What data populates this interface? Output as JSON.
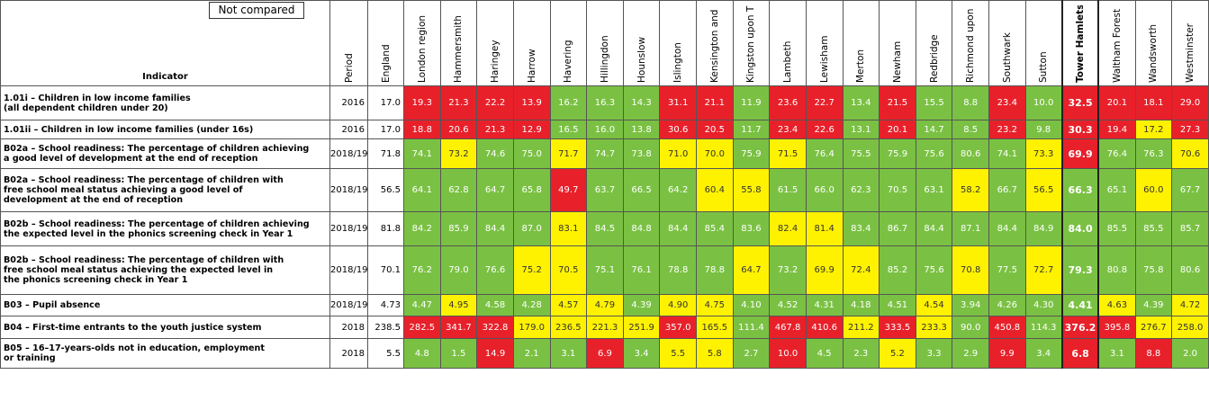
{
  "legend": "Not compared",
  "header": {
    "indicator": "Indicator",
    "period": "Period",
    "england": "England",
    "areas": [
      "London region",
      "Hammersmith",
      "Haringey",
      "Harrow",
      "Havering",
      "Hillingdon",
      "Hounslow",
      "Islington",
      "Kensington and",
      "Kingston upon T",
      "Lambeth",
      "Lewisham",
      "Merton",
      "Newham",
      "Redbridge",
      "Richmond upon",
      "Southwark",
      "Sutton",
      "Tower Hamlets",
      "Waltham Forest",
      "Wandsworth",
      "Westminster"
    ],
    "highlight": "Tower Hamlets"
  },
  "rows": [
    {
      "indicator": [
        "1.01i – Children in low income families",
        "(all dependent children under 20)"
      ],
      "period": "2016",
      "england": "17.0",
      "values": [
        "19.3",
        "21.3",
        "22.2",
        "13.9",
        "16.2",
        "16.3",
        "14.3",
        "31.1",
        "21.1",
        "11.9",
        "23.6",
        "22.7",
        "13.4",
        "21.5",
        "15.5",
        "8.8",
        "23.4",
        "10.0",
        "32.5",
        "20.1",
        "18.1",
        "29.0"
      ],
      "colors": [
        "red",
        "red",
        "red",
        "red",
        "green",
        "green",
        "green",
        "red",
        "red",
        "green",
        "red",
        "red",
        "green",
        "red",
        "green",
        "green",
        "red",
        "green",
        "red",
        "red",
        "red",
        "red"
      ]
    },
    {
      "indicator": [
        "1.01ii – Children in low income families (under 16s)"
      ],
      "period": "2016",
      "england": "17.0",
      "values": [
        "18.8",
        "20.6",
        "21.3",
        "12.9",
        "16.5",
        "16.0",
        "13.8",
        "30.6",
        "20.5",
        "11.7",
        "23.4",
        "22.6",
        "13.1",
        "20.1",
        "14.7",
        "8.5",
        "23.2",
        "9.8",
        "30.3",
        "19.4",
        "17.2",
        "27.3"
      ],
      "colors": [
        "red",
        "red",
        "red",
        "red",
        "green",
        "green",
        "green",
        "red",
        "red",
        "green",
        "red",
        "red",
        "green",
        "red",
        "green",
        "green",
        "red",
        "green",
        "red",
        "red",
        "yellow",
        "red"
      ]
    },
    {
      "indicator": [
        "B02a – School readiness: The percentage of children achieving",
        "a good level of development at the end of reception"
      ],
      "period": "2018/19",
      "england": "71.8",
      "values": [
        "74.1",
        "73.2",
        "74.6",
        "75.0",
        "71.7",
        "74.7",
        "73.8",
        "71.0",
        "70.0",
        "75.9",
        "71.5",
        "76.4",
        "75.5",
        "75.9",
        "75.6",
        "80.6",
        "74.1",
        "73.3",
        "69.9",
        "76.4",
        "76.3",
        "70.6"
      ],
      "colors": [
        "green",
        "yellow",
        "green",
        "green",
        "yellow",
        "green",
        "green",
        "yellow",
        "yellow",
        "green",
        "yellow",
        "green",
        "green",
        "green",
        "green",
        "green",
        "green",
        "yellow",
        "red",
        "green",
        "green",
        "yellow"
      ]
    },
    {
      "indicator": [
        "B02a – School readiness: The percentage of children with",
        "free school meal status achieving a good level of",
        "development at the end of reception"
      ],
      "period": "2018/19",
      "england": "56.5",
      "values": [
        "64.1",
        "62.8",
        "64.7",
        "65.8",
        "49.7",
        "63.7",
        "66.5",
        "64.2",
        "60.4",
        "55.8",
        "61.5",
        "66.0",
        "62.3",
        "70.5",
        "63.1",
        "58.2",
        "66.7",
        "56.5",
        "66.3",
        "65.1",
        "60.0",
        "67.7"
      ],
      "colors": [
        "green",
        "green",
        "green",
        "green",
        "red",
        "green",
        "green",
        "green",
        "yellow",
        "yellow",
        "green",
        "green",
        "green",
        "green",
        "green",
        "yellow",
        "green",
        "yellow",
        "green",
        "green",
        "yellow",
        "green"
      ]
    },
    {
      "indicator": [
        "B02b – School readiness: The percentage of children achieving",
        "the expected level in the phonics screening check in Year 1"
      ],
      "period": "2018/19",
      "england": "81.8",
      "values": [
        "84.2",
        "85.9",
        "84.4",
        "87.0",
        "83.1",
        "84.5",
        "84.8",
        "84.4",
        "85.4",
        "83.6",
        "82.4",
        "81.4",
        "83.4",
        "86.7",
        "84.4",
        "87.1",
        "84.4",
        "84.9",
        "84.0",
        "85.5",
        "85.5",
        "85.7"
      ],
      "colors": [
        "green",
        "green",
        "green",
        "green",
        "yellow",
        "green",
        "green",
        "green",
        "green",
        "green",
        "yellow",
        "yellow",
        "green",
        "green",
        "green",
        "green",
        "green",
        "green",
        "green",
        "green",
        "green",
        "green"
      ]
    },
    {
      "indicator": [
        "B02b – School readiness: The percentage of children with",
        "free school meal status achieving the expected level in",
        "the phonics screening check in Year 1"
      ],
      "period": "2018/19",
      "england": "70.1",
      "values": [
        "76.2",
        "79.0",
        "76.6",
        "75.2",
        "70.5",
        "75.1",
        "76.1",
        "78.8",
        "78.8",
        "64.7",
        "73.2",
        "69.9",
        "72.4",
        "85.2",
        "75.6",
        "70.8",
        "77.5",
        "72.7",
        "79.3",
        "80.8",
        "75.8",
        "80.6"
      ],
      "colors": [
        "green",
        "green",
        "green",
        "yellow",
        "yellow",
        "green",
        "green",
        "green",
        "green",
        "yellow",
        "green",
        "yellow",
        "yellow",
        "green",
        "green",
        "yellow",
        "green",
        "yellow",
        "green",
        "green",
        "green",
        "green"
      ]
    },
    {
      "indicator": [
        "B03 – Pupil absence"
      ],
      "period": "2018/19",
      "england": "4.73",
      "values": [
        "4.47",
        "4.95",
        "4.58",
        "4.28",
        "4.57",
        "4.79",
        "4.39",
        "4.90",
        "4.75",
        "4.10",
        "4.52",
        "4.31",
        "4.18",
        "4.51",
        "4.54",
        "3.94",
        "4.26",
        "4.30",
        "4.41",
        "4.63",
        "4.39",
        "4.72"
      ],
      "colors": [
        "green",
        "yellow",
        "green",
        "green",
        "yellow",
        "yellow",
        "green",
        "yellow",
        "yellow",
        "green",
        "green",
        "green",
        "green",
        "green",
        "yellow",
        "green",
        "green",
        "green",
        "green",
        "yellow",
        "green",
        "yellow"
      ]
    },
    {
      "indicator": [
        "B04 – First-time entrants to the youth justice system"
      ],
      "period": "2018",
      "england": "238.5",
      "values": [
        "282.5",
        "341.7",
        "322.8",
        "179.0",
        "236.5",
        "221.3",
        "251.9",
        "357.0",
        "165.5",
        "111.4",
        "467.8",
        "410.6",
        "211.2",
        "333.5",
        "233.3",
        "90.0",
        "450.8",
        "114.3",
        "376.2",
        "395.8",
        "276.7",
        "258.0"
      ],
      "colors": [
        "red",
        "red",
        "red",
        "yellow",
        "yellow",
        "yellow",
        "yellow",
        "red",
        "yellow",
        "green",
        "red",
        "red",
        "yellow",
        "red",
        "yellow",
        "green",
        "red",
        "green",
        "red",
        "red",
        "yellow",
        "yellow"
      ]
    },
    {
      "indicator": [
        "B05 – 16–17-years-olds not in education, employment",
        "or training"
      ],
      "period": "2018",
      "england": "5.5",
      "values": [
        "4.8",
        "1.5",
        "14.9",
        "2.1",
        "3.1",
        "6.9",
        "3.4",
        "5.5",
        "5.8",
        "2.7",
        "10.0",
        "4.5",
        "2.3",
        "5.2",
        "3.3",
        "2.9",
        "9.9",
        "3.4",
        "6.8",
        "3.1",
        "8.8",
        "2.0"
      ],
      "colors": [
        "green",
        "green",
        "red",
        "green",
        "green",
        "red",
        "green",
        "yellow",
        "yellow",
        "green",
        "red",
        "green",
        "green",
        "yellow",
        "green",
        "green",
        "red",
        "green",
        "red",
        "green",
        "red",
        "green"
      ]
    }
  ]
}
